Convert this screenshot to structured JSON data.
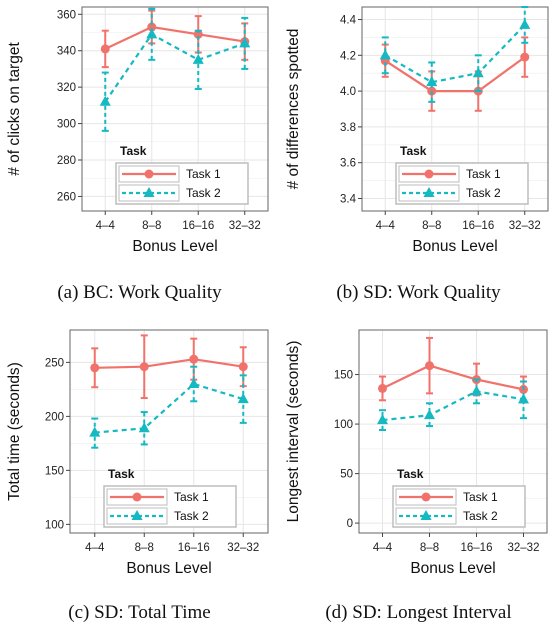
{
  "colors": {
    "task1": "#F0726B",
    "task2": "#14B9C2",
    "grid": "#e6e6e6",
    "frame": "#666666",
    "legend_border": "#bdbdbd"
  },
  "captions": [
    "(a) BC: Work Quality",
    "(b) SD: Work Quality",
    "(c) SD: Total Time",
    "(d) SD: Longest Interval"
  ],
  "chart_data": [
    {
      "type": "line",
      "xlabel": "Bonus Level",
      "ylabel": "# of clicks on target",
      "categories": [
        "4–4",
        "8–8",
        "16–16",
        "32–32"
      ],
      "ylim": [
        252,
        364
      ],
      "yticks": [
        260,
        280,
        300,
        320,
        340,
        360
      ],
      "grid": true,
      "legend": {
        "title": "Task",
        "position": "bottom-center"
      },
      "series": [
        {
          "name": "Task 1",
          "values": [
            341,
            353,
            349,
            345
          ],
          "err_low": [
            331,
            344,
            339,
            335
          ],
          "err_high": [
            351,
            362,
            359,
            355
          ]
        },
        {
          "name": "Task 2",
          "values": [
            312,
            349,
            335,
            344
          ],
          "err_low": [
            296,
            335,
            319,
            330
          ],
          "err_high": [
            328,
            363,
            351,
            358
          ]
        }
      ]
    },
    {
      "type": "line",
      "xlabel": "Bonus Level",
      "ylabel": "# of differences spotted",
      "categories": [
        "4–4",
        "8–8",
        "16–16",
        "32–32"
      ],
      "ylim": [
        3.33,
        4.47
      ],
      "yticks": [
        "3.4",
        "3.6",
        "3.8",
        "4.0",
        "4.2",
        "4.4"
      ],
      "grid": true,
      "legend": {
        "title": "Task",
        "position": "bottom-center"
      },
      "series": [
        {
          "name": "Task 1",
          "values": [
            4.17,
            4.0,
            4.0,
            4.19
          ],
          "err_low": [
            4.08,
            3.89,
            3.89,
            4.08
          ],
          "err_high": [
            4.26,
            4.11,
            4.11,
            4.3
          ]
        },
        {
          "name": "Task 2",
          "values": [
            4.2,
            4.05,
            4.1,
            4.37
          ],
          "err_low": [
            4.1,
            3.94,
            4.0,
            4.27
          ],
          "err_high": [
            4.3,
            4.16,
            4.2,
            4.47
          ]
        }
      ]
    },
    {
      "type": "line",
      "xlabel": "Bonus Level",
      "ylabel": "Total time (seconds)",
      "categories": [
        "4–4",
        "8–8",
        "16–16",
        "32–32"
      ],
      "ylim": [
        92,
        280
      ],
      "yticks": [
        100,
        150,
        200,
        250
      ],
      "grid": true,
      "legend": {
        "title": "Task",
        "position": "bottom-center"
      },
      "series": [
        {
          "name": "Task 1",
          "values": [
            245,
            246,
            253,
            246
          ],
          "err_low": [
            227,
            217,
            234,
            228
          ],
          "err_high": [
            263,
            275,
            272,
            264
          ]
        },
        {
          "name": "Task 2",
          "values": [
            185,
            189,
            230,
            216
          ],
          "err_low": [
            171,
            174,
            214,
            194
          ],
          "err_high": [
            198,
            204,
            246,
            238
          ]
        }
      ]
    },
    {
      "type": "line",
      "xlabel": "Bonus Level",
      "ylabel": "Longest interval (seconds)",
      "categories": [
        "4–4",
        "8–8",
        "16–16",
        "32–32"
      ],
      "ylim": [
        -10,
        195
      ],
      "yticks": [
        0,
        50,
        100,
        150
      ],
      "grid": true,
      "legend": {
        "title": "Task",
        "position": "bottom-center"
      },
      "series": [
        {
          "name": "Task 1",
          "values": [
            136,
            159,
            145,
            135
          ],
          "err_low": [
            124,
            131,
            129,
            122
          ],
          "err_high": [
            148,
            187,
            161,
            148
          ]
        },
        {
          "name": "Task 2",
          "values": [
            104,
            109,
            133,
            125
          ],
          "err_low": [
            94,
            98,
            121,
            106
          ],
          "err_high": [
            114,
            121,
            145,
            143
          ]
        }
      ]
    }
  ]
}
